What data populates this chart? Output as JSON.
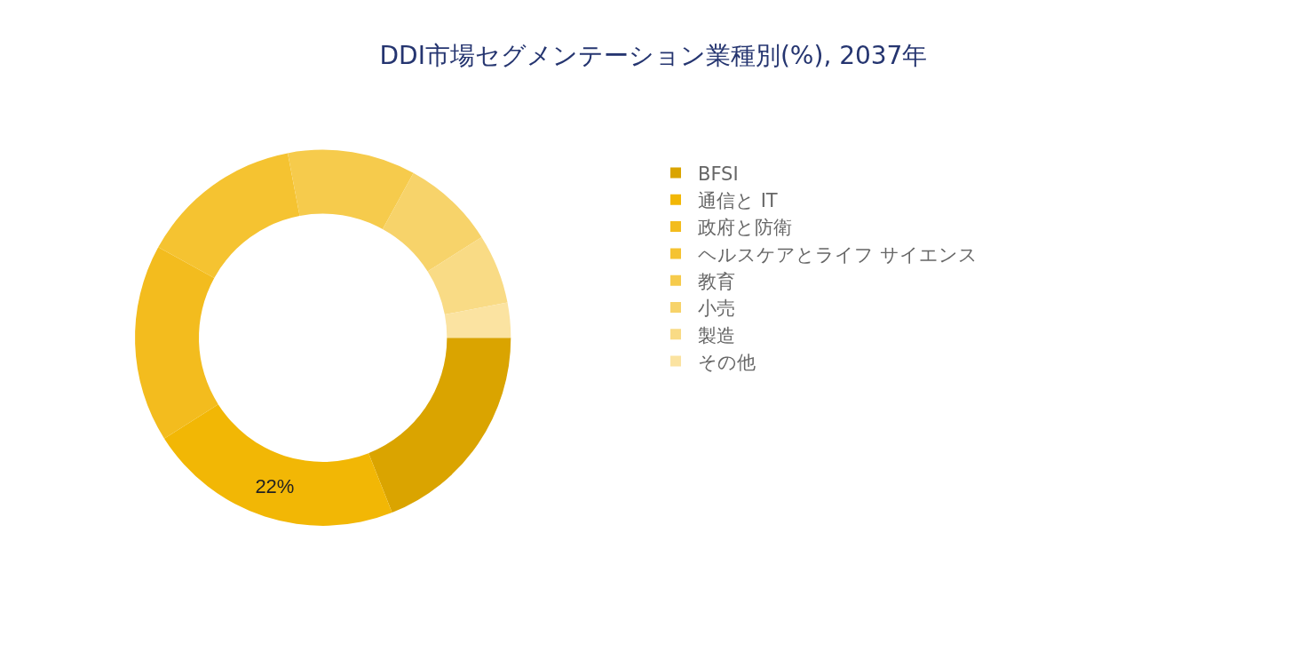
{
  "chart_data": {
    "type": "donut",
    "title": "DDI市場セグメンテーション業種別(%), 2037年",
    "categories": [
      "BFSI",
      "通信と IT",
      "政府と防衛",
      "ヘルスケアとライフ サイエンス",
      "教育",
      "小売",
      "製造",
      "その他"
    ],
    "values": [
      19,
      22,
      17,
      14,
      11,
      8,
      6,
      3
    ],
    "value_labels": [
      null,
      "22%",
      null,
      null,
      null,
      null,
      null,
      null
    ],
    "colors": [
      "#daa400",
      "#f2b705",
      "#f3bc1e",
      "#f5c331",
      "#f6cb4c",
      "#f7d36a",
      "#f9db85",
      "#fbe3a1"
    ],
    "legend": "right"
  }
}
